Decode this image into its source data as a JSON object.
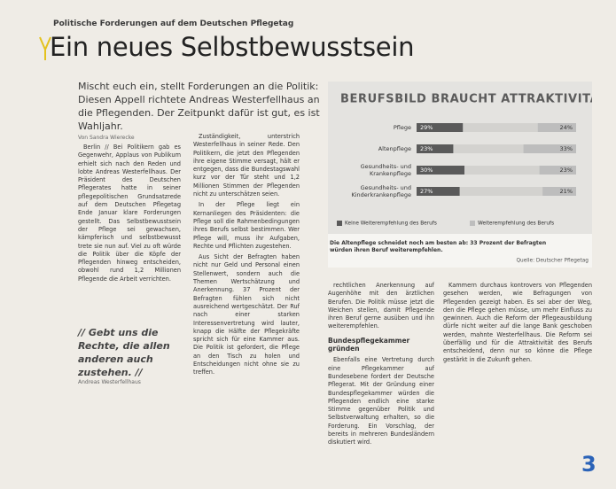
{
  "header": {
    "kicker": "Politische Forderungen auf dem Deutschen Pflegetag",
    "title": "Ein neues Selbstbewusstsein"
  },
  "intro": "Mischt euch ein, stellt Forderungen an die Politik: Diesen Appell richtete Andreas Westerfellhaus an die Pflegenden. Der Zeitpunkt dafür ist gut, es ist Wahljahr.",
  "byline": "Von Sandra Wierecke",
  "columns": [
    [
      "Berlin // Bei Politikern gab es Gegenwehr, Applaus von Publikum erhielt sich nach den Reden und lobte Andreas Westerfellhaus. Der Präsident des Deutschen Pflegerates hatte in seiner pflegepolitischen Grundsatzrede auf dem Deutschen Pflegetag Ende Januar klare Forderungen gestellt. Das Selbstbewusstsein der Pflege sei gewachsen, kämpferisch und selbstbewusst trete sie nun auf. Viel zu oft würde die Politik über die Köpfe der Pflegenden hinweg entscheiden, obwohl rund 1,2 Millionen Pflegende die Arbeit verrichten."
    ],
    [
      "Zuständigkeit, unterstrich Westerfellhaus in seiner Rede. Den Politikern, die jetzt den Pflegenden ihre eigene Stimme versagt, hält er entgegen, dass die Bundestagswahl kurz vor der Tür steht und 1,2 Millionen Stimmen der Pflegenden nicht zu unterschätzen seien.",
      "In der Pflege liegt ein Kernanliegen des Präsidenten: die Pflege soll die Rahmenbedingungen ihres Berufs selbst bestimmen. Wer Pflege will, muss ihr Aufgaben, Rechte und Pflichten zugestehen.",
      "Aus Sicht der Befragten haben nicht nur Geld und Personal einen Stellenwert, sondern auch die Themen Wertschätzung und Anerkennung. 37 Prozent der Befragten fühlen sich nicht ausreichend wertgeschätzt. Der Ruf nach einer starken Interessenvertretung wird lauter, knapp die Hälfte der Pflegekräfte spricht sich für eine Kammer aus. Die Politik ist gefordert, die Pflege an den Tisch zu holen und Entscheidungen nicht ohne sie zu treffen."
    ],
    [
      "rechtlichen Anerkennung auf Augenhöhe mit den ärztlichen Berufen. Die Politik müsse jetzt die Weichen stellen, damit Pflegende ihren Beruf gerne ausüben und ihn weiterempfehlen.",
      "Bundespflegekammer gründen",
      "Ebenfalls eine Vertretung durch eine Pflegekammer auf Bundesebene fordert der Deutsche Pflegerat. Mit der Gründung einer Bundespflegekammer würden die Pflegenden endlich eine starke Stimme gegenüber Politik und Selbstverwaltung erhalten, so die Forderung. Ein Vorschlag, der bereits in mehreren Bundesländern diskutiert wird."
    ],
    [
      "Kammern durchaus kontrovers von Pflegenden gesehen werden, wie Befragungen von Pflegenden gezeigt haben. Es sei aber der Weg, den die Pflege gehen müsse, um mehr Einfluss zu gewinnen. Auch die Reform der Pflegeausbildung dürfe nicht weiter auf die lange Bank geschoben werden, mahnte Westerfellhaus. Die Reform sei überfällig und für die Attraktivität des Berufs entscheidend, denn nur so könne die Pflege gestärkt in die Zukunft gehen."
    ]
  ],
  "quote": {
    "text": "// Gebt uns die Rechte, die allen anderen auch zustehen. //",
    "author": "Andreas Westerfellhaus"
  },
  "page_number": "3",
  "chart_data": {
    "type": "bar",
    "orientation": "horizontal",
    "stacked": true,
    "title": "BERUFSBILD BRAUCHT ATTRAKTIVITÄT",
    "categories": [
      "Pflege",
      "Altenpflege",
      "Gesundheits- und Krankenpflege",
      "Gesundheits- und Kinderkrankenpflege"
    ],
    "series": [
      {
        "name": "Keine Weiterempfehlung des Berufs",
        "color": "#5a5a5a",
        "values": [
          29,
          23,
          30,
          27
        ],
        "value_labels": [
          "29%",
          "23%",
          "30%",
          "27%"
        ]
      },
      {
        "name": "Weiterempfehlung des Berufs",
        "color": "#bdbdbd",
        "values": [
          24,
          33,
          23,
          21
        ],
        "value_labels": [
          "24%",
          "33%",
          "23%",
          "21%"
        ]
      }
    ],
    "legend": "bottom",
    "caption": "Die Altenpflege schneidet noch am besten ab: 33 Prozent der Befragten würden ihren Beruf weiterempfehlen.",
    "source": "Quelle: Deutscher Pflegetag"
  }
}
